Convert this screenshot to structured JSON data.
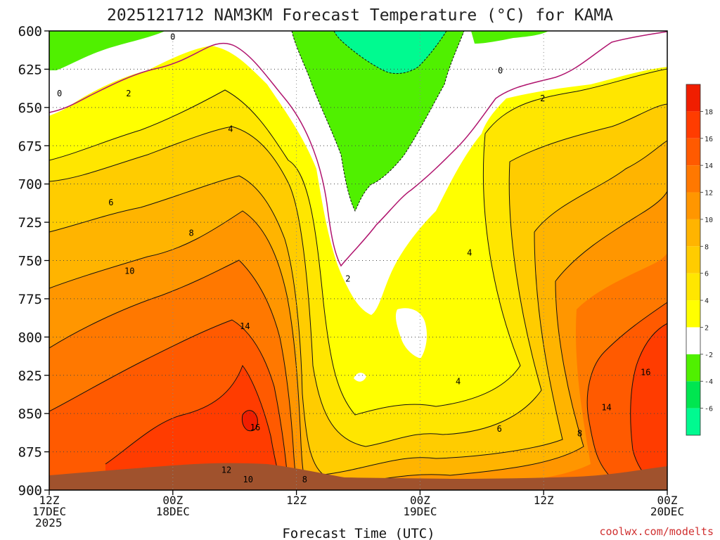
{
  "chart_data": {
    "type": "heatmap",
    "title": "2025121712 NAM3KM Forecast Temperature (°C) for KAMA",
    "xlabel": "Forecast Time (UTC)",
    "ylabel": "",
    "watermark": "coolwx.com/modelts",
    "y_axis": {
      "range": [
        900,
        600
      ],
      "ticks": [
        600,
        625,
        650,
        675,
        700,
        725,
        750,
        775,
        800,
        825,
        850,
        875,
        900
      ],
      "units": "hPa"
    },
    "x_axis": {
      "range_hours": [
        0,
        60
      ],
      "ticks": [
        {
          "hour": 0,
          "lines": [
            "12Z",
            "17DEC",
            "2025"
          ]
        },
        {
          "hour": 12,
          "lines": [
            "00Z",
            "18DEC"
          ]
        },
        {
          "hour": 24,
          "lines": [
            "12Z"
          ]
        },
        {
          "hour": 36,
          "lines": [
            "00Z",
            "19DEC"
          ]
        },
        {
          "hour": 48,
          "lines": [
            "12Z"
          ]
        },
        {
          "hour": 60,
          "lines": [
            "00Z",
            "20DEC"
          ]
        }
      ]
    },
    "colorbar": {
      "bins": [
        {
          "min": 18,
          "max": 20,
          "color": "#f01e00"
        },
        {
          "min": 16,
          "max": 18,
          "color": "#ff3c00"
        },
        {
          "min": 14,
          "max": 16,
          "color": "#ff5a00"
        },
        {
          "min": 12,
          "max": 14,
          "color": "#ff7800"
        },
        {
          "min": 10,
          "max": 12,
          "color": "#ff9600"
        },
        {
          "min": 8,
          "max": 10,
          "color": "#ffb400"
        },
        {
          "min": 6,
          "max": 8,
          "color": "#ffcc00"
        },
        {
          "min": 4,
          "max": 6,
          "color": "#ffe600"
        },
        {
          "min": 2,
          "max": 4,
          "color": "#ffff00"
        },
        {
          "min": -2,
          "max": 2,
          "color": "#ffffff"
        },
        {
          "min": -4,
          "max": -2,
          "color": "#50f000"
        },
        {
          "min": -6,
          "max": -4,
          "color": "#00e650"
        },
        {
          "min": -8,
          "max": -6,
          "color": "#00fa90"
        }
      ],
      "tick_labels": [
        "18",
        "16",
        "14",
        "12",
        "10",
        "8",
        "6",
        "4",
        "2",
        "-2",
        "-4",
        "-6"
      ]
    },
    "contour_labels": [
      {
        "hour": 12.0,
        "p": 604,
        "text": "0"
      },
      {
        "hour": 1.0,
        "p": 641,
        "text": "0"
      },
      {
        "hour": 7.7,
        "p": 641,
        "text": "2"
      },
      {
        "hour": 17.6,
        "p": 664,
        "text": "4"
      },
      {
        "hour": 6.0,
        "p": 712,
        "text": "6"
      },
      {
        "hour": 13.8,
        "p": 732,
        "text": "8"
      },
      {
        "hour": 7.8,
        "p": 757,
        "text": "10"
      },
      {
        "hour": 19.0,
        "p": 793,
        "text": "14"
      },
      {
        "hour": 20.0,
        "p": 859,
        "text": "16"
      },
      {
        "hour": 17.2,
        "p": 887,
        "text": "12"
      },
      {
        "hour": 19.3,
        "p": 893,
        "text": "10"
      },
      {
        "hour": 24.8,
        "p": 893,
        "text": "8"
      },
      {
        "hour": 29.0,
        "p": 762,
        "text": "2"
      },
      {
        "hour": 43.8,
        "p": 626,
        "text": "0"
      },
      {
        "hour": 47.9,
        "p": 644,
        "text": "2"
      },
      {
        "hour": 40.8,
        "p": 745,
        "text": "4"
      },
      {
        "hour": 39.7,
        "p": 829,
        "text": "4"
      },
      {
        "hour": 43.7,
        "p": 860,
        "text": "6"
      },
      {
        "hour": 51.5,
        "p": 863,
        "text": "8"
      },
      {
        "hour": 54.1,
        "p": 846,
        "text": "14"
      },
      {
        "hour": 57.9,
        "p": 823,
        "text": "16"
      }
    ],
    "features": {
      "warm_core_max_c": 18,
      "warm_core_time_hour": 19.5,
      "warm_core_pressure_hpa": 848,
      "cold_core_min_c": -6,
      "cold_core_time_hour": 33.5,
      "cold_core_pressure_hpa": 620
    }
  }
}
